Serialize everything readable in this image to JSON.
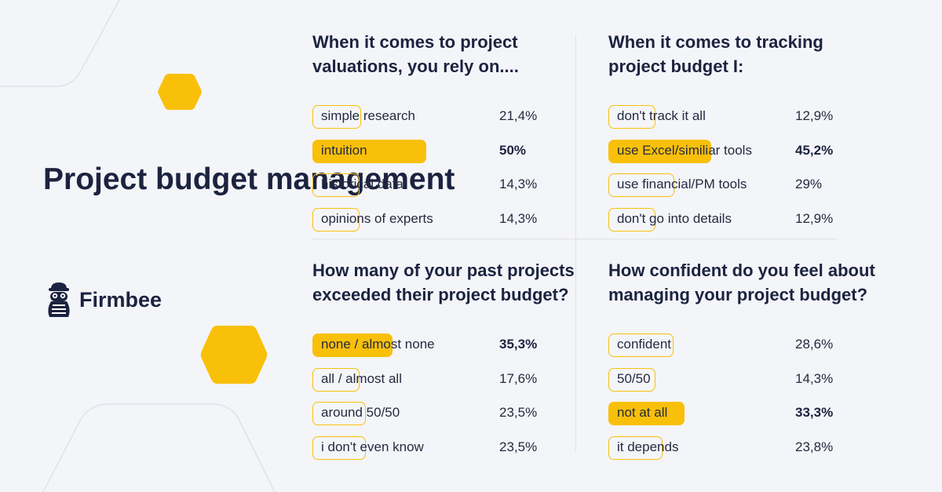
{
  "title": "Project budget management",
  "brand": {
    "name": "Firmbee",
    "icon": "mascot-icon"
  },
  "colors": {
    "accent": "#f9c00a",
    "text": "#1c2340",
    "background": "#f4f5f9"
  },
  "chart_data": [
    {
      "type": "bar",
      "title": "When it comes to project valuations, you rely on....",
      "categories": [
        "simple research",
        "intuition",
        "historical data",
        "opinions of experts"
      ],
      "values": [
        21.4,
        50,
        14.3,
        14.3
      ],
      "labels": [
        "21,4%",
        "50%",
        "14,3%",
        "14,3%"
      ],
      "highlight_index": 1
    },
    {
      "type": "bar",
      "title": "When it comes to tracking project budget I:",
      "categories": [
        "don't track it all",
        "use Excel/similiar tools",
        "use financial/PM tools",
        "don't go into details"
      ],
      "values": [
        12.9,
        45.2,
        29,
        12.9
      ],
      "labels": [
        "12,9%",
        "45,2%",
        "29%",
        "12,9%"
      ],
      "highlight_index": 1
    },
    {
      "type": "bar",
      "title": "How many of your past projects exceeded their project budget?",
      "categories": [
        "none / almost none",
        "all / almost all",
        "around 50/50",
        "i don't even know"
      ],
      "values": [
        35.3,
        17.6,
        23.5,
        23.5
      ],
      "labels": [
        "35,3%",
        "17,6%",
        "23,5%",
        "23,5%"
      ],
      "highlight_index": 0
    },
    {
      "type": "bar",
      "title": "How confident do you feel about managing your project budget?",
      "categories": [
        "confident",
        "50/50",
        "not at all",
        "it depends"
      ],
      "values": [
        28.6,
        14.3,
        33.3,
        23.8
      ],
      "labels": [
        "28,6%",
        "14,3%",
        "33,3%",
        "23,8%"
      ],
      "highlight_index": 2
    }
  ]
}
